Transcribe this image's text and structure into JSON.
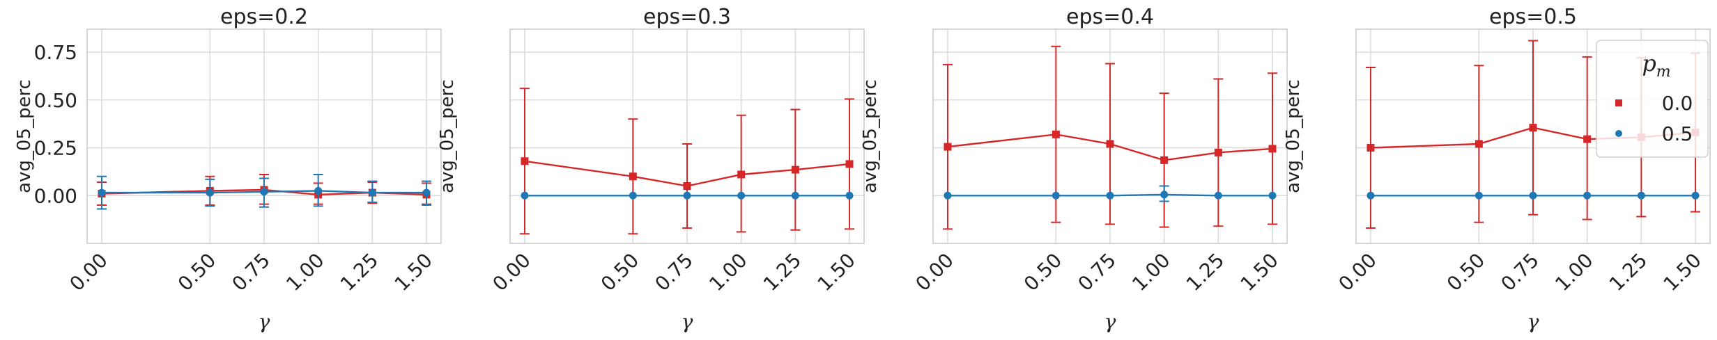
{
  "chart_data": [
    {
      "type": "line",
      "title": "eps=0.2",
      "xlabel": "γ",
      "ylabel": "avg_05_perc",
      "x": [
        0.0,
        0.5,
        0.75,
        1.0,
        1.25,
        1.5
      ],
      "x_tick_labels": [
        "0.00",
        "0.50",
        "0.75",
        "1.00",
        "1.25",
        "1.50"
      ],
      "ylim": [
        -0.25,
        0.87
      ],
      "y_ticks": [
        0.0,
        0.25,
        0.5,
        0.75
      ],
      "y_tick_labels": [
        "0.00",
        "0.25",
        "0.50",
        "0.75"
      ],
      "grid": true,
      "series": [
        {
          "name": "0.0",
          "color": "#d62728",
          "marker": "square",
          "values": [
            0.01,
            0.025,
            0.03,
            0.005,
            0.015,
            0.005
          ],
          "err_low": [
            0.06,
            0.075,
            0.075,
            0.05,
            0.055,
            0.05
          ],
          "err_high": [
            0.06,
            0.075,
            0.08,
            0.06,
            0.055,
            0.06
          ]
        },
        {
          "name": "0.5",
          "color": "#1f77b4",
          "marker": "circle",
          "values": [
            0.015,
            0.015,
            0.02,
            0.025,
            0.015,
            0.015
          ],
          "err_low": [
            0.085,
            0.07,
            0.08,
            0.08,
            0.05,
            0.065
          ],
          "err_high": [
            0.085,
            0.07,
            0.07,
            0.085,
            0.06,
            0.06
          ]
        }
      ]
    },
    {
      "type": "line",
      "title": "eps=0.3",
      "xlabel": "γ",
      "ylabel": "avg_05_perc",
      "x": [
        0.0,
        0.5,
        0.75,
        1.0,
        1.25,
        1.5
      ],
      "x_tick_labels": [
        "0.00",
        "0.50",
        "0.75",
        "1.00",
        "1.25",
        "1.50"
      ],
      "ylim": [
        -0.25,
        0.87
      ],
      "grid": true,
      "series": [
        {
          "name": "0.0",
          "color": "#d62728",
          "marker": "square",
          "values": [
            0.18,
            0.1,
            0.05,
            0.11,
            0.135,
            0.165
          ],
          "err_low": [
            0.38,
            0.3,
            0.22,
            0.3,
            0.315,
            0.34
          ],
          "err_high": [
            0.38,
            0.3,
            0.22,
            0.31,
            0.315,
            0.34
          ]
        },
        {
          "name": "0.5",
          "color": "#1f77b4",
          "marker": "circle",
          "values": [
            0.0,
            0.0,
            0.0,
            0.0,
            0.0,
            0.0
          ],
          "err_low": [
            0.0,
            0.0,
            0.0,
            0.0,
            0.0,
            0.0
          ],
          "err_high": [
            0.0,
            0.0,
            0.0,
            0.0,
            0.0,
            0.0
          ]
        }
      ]
    },
    {
      "type": "line",
      "title": "eps=0.4",
      "xlabel": "γ",
      "ylabel": "avg_05_perc",
      "x": [
        0.0,
        0.5,
        0.75,
        1.0,
        1.25,
        1.5
      ],
      "x_tick_labels": [
        "0.00",
        "0.50",
        "0.75",
        "1.00",
        "1.25",
        "1.50"
      ],
      "ylim": [
        -0.25,
        0.87
      ],
      "grid": true,
      "series": [
        {
          "name": "0.0",
          "color": "#d62728",
          "marker": "square",
          "values": [
            0.255,
            0.32,
            0.27,
            0.185,
            0.225,
            0.245
          ],
          "err_low": [
            0.43,
            0.46,
            0.42,
            0.35,
            0.385,
            0.395
          ],
          "err_high": [
            0.43,
            0.46,
            0.42,
            0.35,
            0.385,
            0.395
          ]
        },
        {
          "name": "0.5",
          "color": "#1f77b4",
          "marker": "circle",
          "values": [
            0.0,
            0.0,
            0.0,
            0.005,
            0.0,
            0.0
          ],
          "err_low": [
            0.0,
            0.0,
            0.0,
            0.035,
            0.0,
            0.0
          ],
          "err_high": [
            0.0,
            0.0,
            0.0,
            0.045,
            0.0,
            0.0
          ]
        }
      ]
    },
    {
      "type": "line",
      "title": "eps=0.5",
      "xlabel": "γ",
      "ylabel": "avg_05_perc",
      "x": [
        0.0,
        0.5,
        0.75,
        1.0,
        1.25,
        1.5
      ],
      "x_tick_labels": [
        "0.00",
        "0.50",
        "0.75",
        "1.00",
        "1.25",
        "1.50"
      ],
      "ylim": [
        -0.25,
        0.87
      ],
      "grid": true,
      "legend": {
        "title": "p",
        "title_subscript": "m",
        "position": "top-right",
        "entries": [
          "0.0",
          "0.5"
        ]
      },
      "series": [
        {
          "name": "0.0",
          "color": "#d62728",
          "marker": "square",
          "values": [
            0.25,
            0.27,
            0.355,
            0.295,
            0.305,
            0.33
          ],
          "err_low": [
            0.42,
            0.41,
            0.455,
            0.42,
            0.415,
            0.415
          ],
          "err_high": [
            0.42,
            0.41,
            0.455,
            0.43,
            0.415,
            0.415
          ]
        },
        {
          "name": "0.5",
          "color": "#1f77b4",
          "marker": "circle",
          "values": [
            0.0,
            0.0,
            0.0,
            0.0,
            0.0,
            0.0
          ],
          "err_low": [
            0.0,
            0.0,
            0.0,
            0.0,
            0.0,
            0.0
          ],
          "err_high": [
            0.0,
            0.0,
            0.0,
            0.0,
            0.0,
            0.0
          ]
        }
      ]
    }
  ]
}
